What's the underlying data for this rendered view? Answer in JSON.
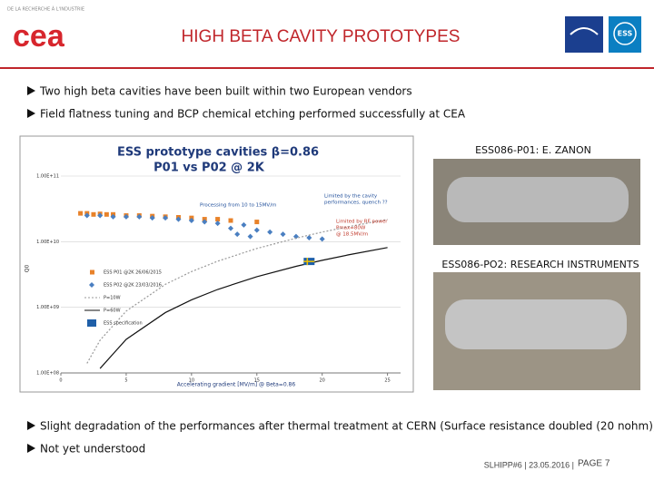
{
  "header": {
    "tagline": "DE LA RECHERCHE À L'INDUSTRIE",
    "logo": "cea",
    "title": "HIGH BETA CAVITY PROTOTYPES",
    "logo_right": "ESS"
  },
  "bullets": [
    "Two high beta cavities have been built within two European vendors",
    "Field flatness tuning and BCP chemical etching performed successfully at CEA"
  ],
  "chart_data": {
    "type": "scatter",
    "title": "ESS prototype cavities β=0.86",
    "subtitle": "P01 vs P02  @ 2K",
    "x_label": "Accelerating gradient [MV/m]  @ Beta=0.86",
    "y_label": "Q0",
    "log_y": true,
    "xlim": [
      0,
      26
    ],
    "xticks": [
      0,
      5,
      10,
      15,
      20,
      25
    ],
    "ylim": [
      100000000,
      100000000000
    ],
    "yticks": [
      {
        "value": 100000000,
        "label": "1.00E+08"
      },
      {
        "value": 1000000000,
        "label": "1.00E+09"
      },
      {
        "value": 10000000000,
        "label": "1.00E+10"
      },
      {
        "value": 100000000000,
        "label": "1.00E+11"
      }
    ],
    "series": [
      {
        "name": "ESS P01 @2K 26/06/2015",
        "color": "#e8822a",
        "marker": "square",
        "x": [
          1.5,
          2,
          2.5,
          3,
          3.5,
          4,
          5,
          6,
          7,
          8,
          9,
          10,
          11,
          12,
          13,
          15
        ],
        "values": [
          27000000000,
          27000000000,
          26000000000,
          26500000000,
          26000000000,
          26000000000,
          25000000000,
          25000000000,
          24500000000,
          24000000000,
          23500000000,
          23000000000,
          22000000000,
          22000000000,
          21000000000,
          20000000000
        ]
      },
      {
        "name": "ESS P02 @2K 23/03/2016",
        "color": "#4a7fc1",
        "marker": "diamond",
        "x": [
          2,
          3,
          4,
          5,
          6,
          7,
          8,
          9,
          10,
          11,
          12,
          13,
          13.5,
          14,
          14.5,
          15,
          16,
          17,
          18,
          19,
          20
        ],
        "values": [
          25000000000,
          25000000000,
          24000000000,
          24000000000,
          24000000000,
          23000000000,
          23000000000,
          22000000000,
          21000000000,
          20000000000,
          19000000000,
          16000000000,
          13000000000,
          18000000000,
          12000000000,
          15000000000,
          14000000000,
          13000000000,
          12000000000,
          11500000000,
          11000000000
        ]
      },
      {
        "name": "P=10W",
        "color": "#999999",
        "marker": "dotted-line",
        "x": [
          2,
          3,
          5,
          8,
          10,
          12,
          15,
          18,
          20,
          22,
          25
        ],
        "values": [
          140000000,
          315000000,
          875000000,
          2240000000,
          3500000000,
          5040000000,
          7880000000,
          11300000000,
          14000000000,
          16900000000,
          21900000000
        ]
      },
      {
        "name": "P=60W",
        "color": "#111111",
        "marker": "line",
        "x": [
          3,
          5,
          8,
          10,
          12,
          15,
          18,
          20,
          22,
          25
        ],
        "values": [
          117000000,
          325000000,
          832000000,
          1300000000,
          1870000000,
          2930000000,
          4210000000,
          5200000000,
          6290000000,
          8130000000
        ]
      },
      {
        "name": "ESS specification",
        "color": "#1f5fa8",
        "marker": "flag",
        "x": [
          19
        ],
        "values": [
          5000000000
        ]
      }
    ],
    "annotations": [
      {
        "text": [
          "Processing from 10 to 15MV/m"
        ],
        "color": "#1f4e9a"
      },
      {
        "text": [
          "Limited by the cavity",
          "performances, quench ??"
        ],
        "color": "#1f4e9a"
      },
      {
        "text": [
          "Limited by RF power",
          "Pmax=80W",
          "@ 18.5MV/m"
        ],
        "color": "#c0392b"
      }
    ]
  },
  "photos": [
    {
      "caption": "ESS086-P01: E. ZANON"
    },
    {
      "caption": "ESS086-PO2: RESEARCH INSTRUMENTS"
    }
  ],
  "bottom_bullets": [
    "Slight degradation of the performances after thermal treatment at CERN (Surface resistance doubled (20 nohm))",
    "Not yet understood"
  ],
  "footer": {
    "text": "SLHIPP#6 | 23.05.2016 |",
    "page": "PAGE 7"
  }
}
